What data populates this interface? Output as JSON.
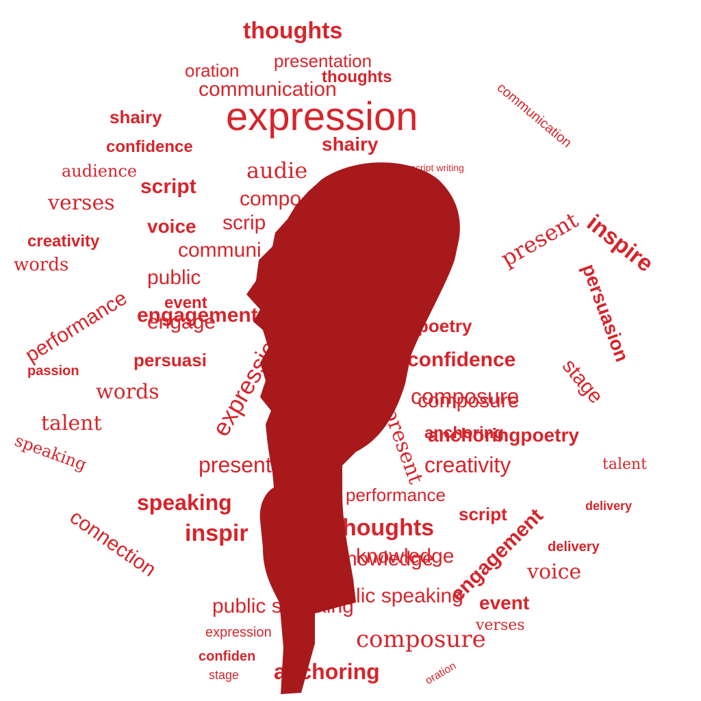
{
  "colors": {
    "text": "#d5252b",
    "silhouette": "#a8191c",
    "background": "#ffffff"
  },
  "silhouette": {
    "icon": "microphone-silhouette-icon"
  },
  "words": [
    "expression",
    "thoughts",
    "communication",
    "presentation",
    "oration",
    "confidence",
    "shairy",
    "script writing",
    "audience",
    "script",
    "verses",
    "inspire",
    "voice",
    "persuasion",
    "creativity",
    "words",
    "public speaking",
    "performance",
    "event",
    "engagement",
    "passion",
    "talent",
    "speaking",
    "connection",
    "composure",
    "anchoring",
    "poetry",
    "delivery",
    "knowledge",
    "stage",
    "present",
    "engage",
    "audie",
    "compo",
    "scrip",
    "communi",
    "public",
    "persuasi",
    "words",
    "confidence",
    "composure",
    "anchoringpoetry",
    "creativity",
    "talent",
    "presentation",
    "performance",
    "speaking",
    "inspir",
    "houghts",
    "nowledge",
    "public speaking",
    "composure",
    "anchoring",
    "delivery",
    "voice",
    "event",
    "verses",
    "engagement",
    "stage",
    "oration",
    "expression",
    "communication",
    "script",
    "thoughts",
    "shairy",
    "confiden",
    "expression",
    "present"
  ]
}
